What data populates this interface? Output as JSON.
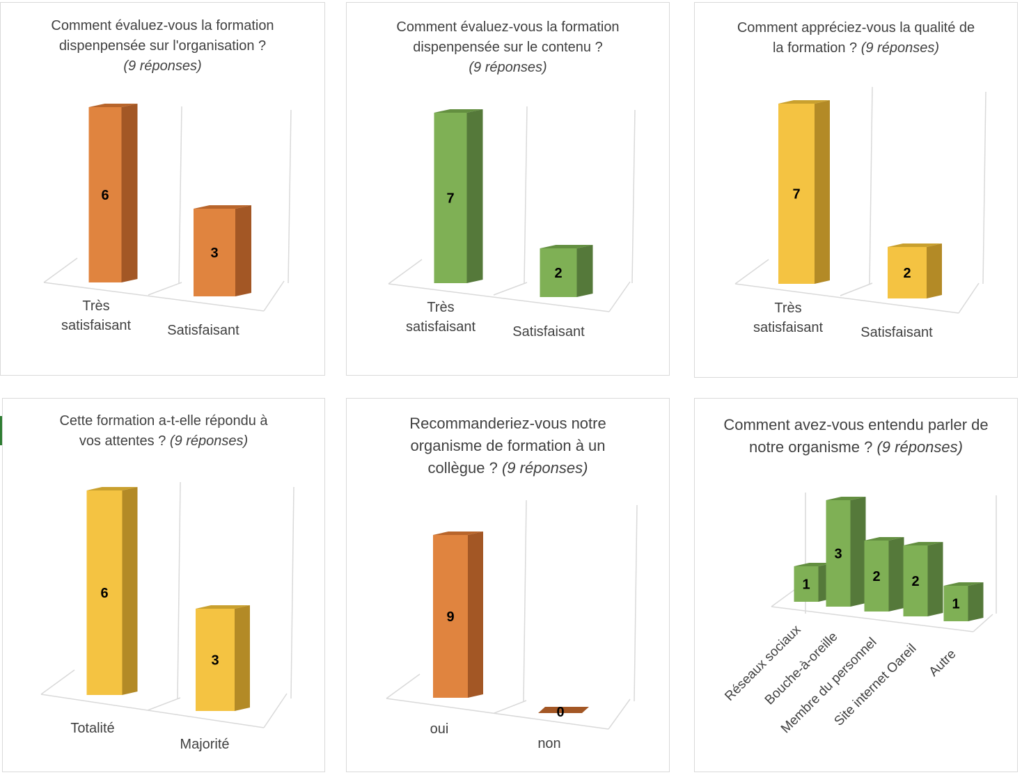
{
  "colors": {
    "orange": "#e0843f",
    "orange_dark": "#a35725",
    "orange_top": "#b8652b",
    "green": "#7fb055",
    "green_dark": "#55793a",
    "green_top": "#638f40",
    "yellow": "#f4c342",
    "yellow_dark": "#b38a26",
    "yellow_top": "#c9a02e",
    "axis": "#d9d9d9",
    "text": "#404040"
  },
  "chart_data": [
    {
      "type": "bar",
      "title": "Comment évaluez-vous la formation dispenpensée sur l'organisation ?",
      "title_italic": "(9 réponses)",
      "categories": [
        "Très satisfaisant",
        "Satisfaisant"
      ],
      "values": [
        6,
        3
      ],
      "color": "orange"
    },
    {
      "type": "bar",
      "title": "Comment évaluez-vous la formation dispenpensée sur le contenu ?",
      "title_italic": "(9 réponses)",
      "categories": [
        "Très satisfaisant",
        "Satisfaisant"
      ],
      "values": [
        7,
        2
      ],
      "color": "green"
    },
    {
      "type": "bar",
      "title": "Comment appréciez-vous la qualité de la formation ?",
      "title_italic": "(9 réponses)",
      "categories": [
        "Très satisfaisant",
        "Satisfaisant"
      ],
      "values": [
        7,
        2
      ],
      "color": "yellow"
    },
    {
      "type": "bar",
      "title": "Cette formation a-t-elle répondu à vos attentes ?",
      "title_italic": "(9 réponses)",
      "categories": [
        "Totalité",
        "Majorité"
      ],
      "values": [
        6,
        3
      ],
      "color": "yellow"
    },
    {
      "type": "bar",
      "title": "Recommanderiez-vous notre organisme de formation à un collègue ?",
      "title_italic": "(9 réponses)",
      "categories": [
        "oui",
        "non"
      ],
      "values": [
        9,
        0
      ],
      "color": "orange"
    },
    {
      "type": "bar",
      "title": "Comment avez-vous entendu parler de notre organisme ?",
      "title_italic": "(9 réponses)",
      "categories": [
        "Réseaux sociaux",
        "Bouche-à-oreille",
        "Membre du personnel",
        "Site internet Oareil",
        "Autre"
      ],
      "values": [
        1,
        3,
        2,
        2,
        1
      ],
      "color": "green"
    }
  ]
}
